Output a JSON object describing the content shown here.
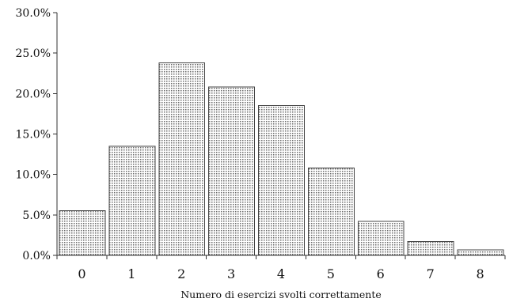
{
  "chart_data": {
    "type": "bar",
    "categories": [
      "0",
      "1",
      "2",
      "3",
      "4",
      "5",
      "6",
      "7",
      "8"
    ],
    "values": [
      5.5,
      13.5,
      23.8,
      20.8,
      18.5,
      10.8,
      4.2,
      1.7,
      0.7
    ],
    "xlabel": "Numero di esercizi svolti correttamente",
    "ylabel": "",
    "ylim": [
      0,
      30
    ],
    "yticks": [
      0,
      5,
      10,
      15,
      20,
      25,
      30
    ],
    "ytick_labels": [
      "0.0%",
      "5.0%",
      "10.0%",
      "15.0%",
      "20.0%",
      "25.0%",
      "30.0%"
    ],
    "grid": false,
    "legend": "none",
    "bar_fill_pattern": "dotted",
    "colors": {
      "bar_fill": "#ffffff",
      "bar_dots": "#6b6b6b",
      "bar_stroke": "#444444",
      "axis": "#333333",
      "text": "#111111"
    }
  }
}
